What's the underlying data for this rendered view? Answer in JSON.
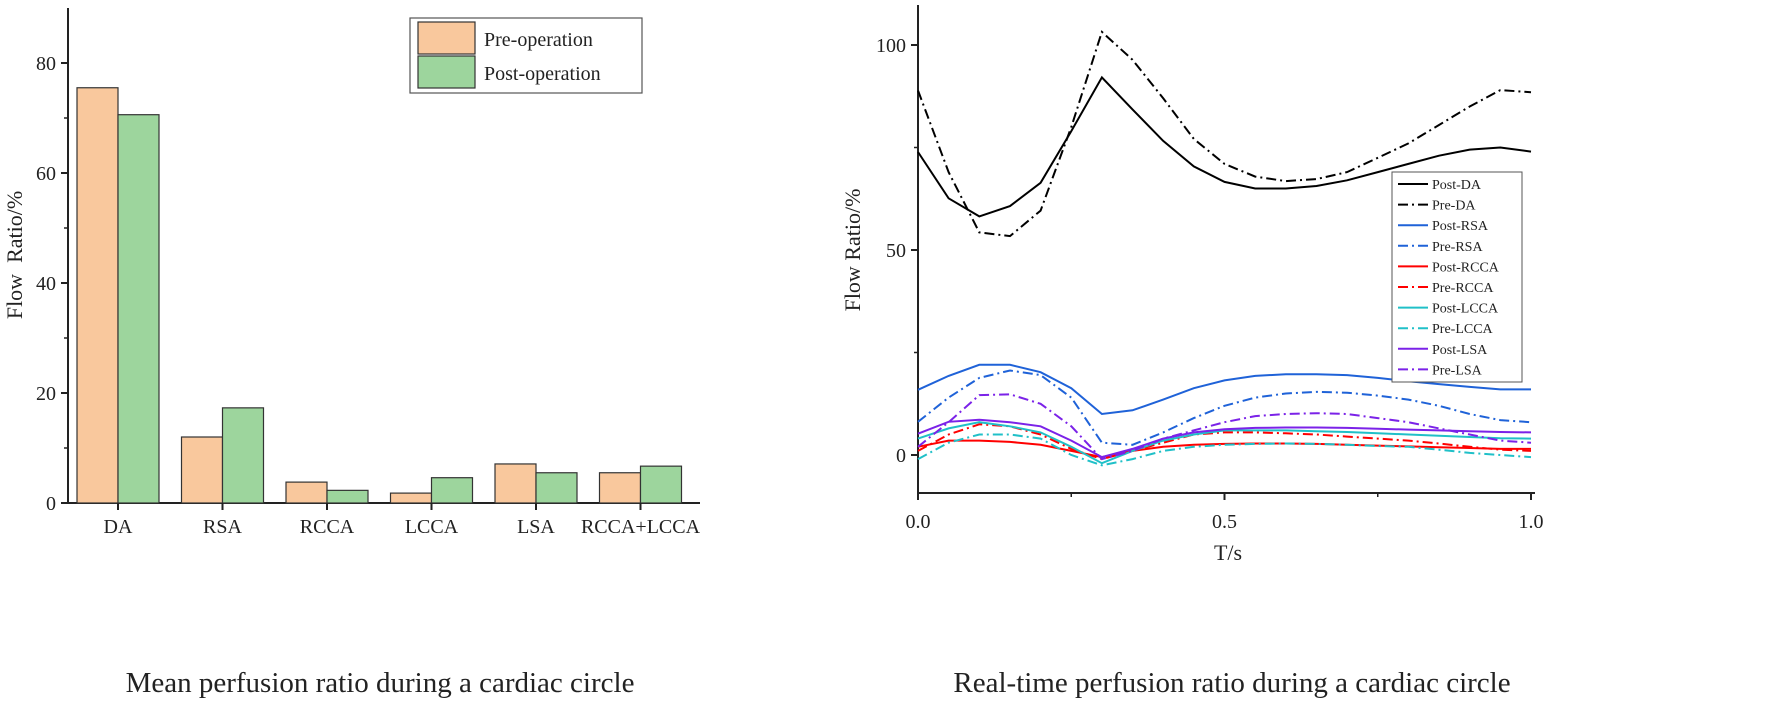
{
  "chart_data": [
    {
      "type": "bar",
      "caption": "Mean perfusion ratio during a cardiac circle",
      "xlabel": "",
      "ylabel": "Flow  Ratio/%",
      "ylim": [
        0,
        88
      ],
      "yticks": [
        0,
        20,
        40,
        60,
        80
      ],
      "categories": [
        "DA",
        "RSA",
        "RCCA",
        "LCCA",
        "LSA",
        "RCCA+LCCA"
      ],
      "series": [
        {
          "name": "Pre-operation",
          "color": "#f9c89d",
          "values": [
            75.5,
            12.0,
            3.8,
            1.8,
            7.1,
            5.5
          ]
        },
        {
          "name": "Post-operation",
          "color": "#9dd59d",
          "values": [
            70.6,
            17.3,
            2.3,
            4.6,
            5.5,
            6.7
          ]
        }
      ],
      "legend": "top-right",
      "grid": false
    },
    {
      "type": "line",
      "caption": "Real-time perfusion ratio during a cardiac circle",
      "xlabel": "T/s",
      "ylabel": "Flow Ratio/%",
      "xlim": [
        0,
        1.0
      ],
      "ylim": [
        -9,
        110
      ],
      "xticks": [
        "0.0",
        "0.5",
        "1.0"
      ],
      "yticks": [
        "0",
        "50",
        "100"
      ],
      "x": [
        0,
        0.05,
        0.1,
        0.15,
        0.2,
        0.25,
        0.3,
        0.35,
        0.4,
        0.45,
        0.5,
        0.55,
        0.6,
        0.65,
        0.7,
        0.75,
        0.8,
        0.85,
        0.9,
        0.95,
        1.0
      ],
      "series": [
        {
          "name": "Post-DA",
          "color": "#000000",
          "dash": "solid",
          "values": [
            73.9,
            62.6,
            58.2,
            60.7,
            66.4,
            79,
            92.1,
            84.3,
            76.6,
            70.4,
            66.6,
            65,
            65,
            65.6,
            67,
            69,
            71,
            73,
            74.5,
            75,
            74
          ]
        },
        {
          "name": "Pre-DA",
          "color": "#000000",
          "dash": "dashdot",
          "values": [
            88.9,
            69,
            54.3,
            53.4,
            59.6,
            80,
            103.2,
            96.4,
            87,
            77.1,
            71,
            67.9,
            66.8,
            67.3,
            69,
            72.5,
            76,
            80.5,
            85,
            89,
            88.5
          ]
        },
        {
          "name": "Post-RSA",
          "color": "#1f62d8",
          "dash": "solid",
          "values": [
            15.9,
            19.3,
            22,
            22,
            20.2,
            16.3,
            10,
            10.9,
            13.5,
            16.3,
            18.2,
            19.3,
            19.7,
            19.7,
            19.5,
            18.8,
            18,
            17.3,
            16.6,
            16,
            16
          ]
        },
        {
          "name": "Pre-RSA",
          "color": "#1f62d8",
          "dash": "dashdot",
          "values": [
            8.1,
            14,
            18.8,
            20.6,
            19.5,
            14,
            3,
            2.5,
            5.5,
            9,
            12,
            14,
            15,
            15.4,
            15.2,
            14.5,
            13.5,
            12,
            10,
            8.5,
            8
          ]
        },
        {
          "name": "Post-RCCA",
          "color": "#ff0000",
          "dash": "solid",
          "values": [
            2,
            3.5,
            3.5,
            3.2,
            2.5,
            1,
            -0.5,
            1,
            2,
            2.5,
            2.7,
            2.8,
            2.8,
            2.7,
            2.5,
            2.3,
            2.1,
            1.9,
            1.7,
            1.5,
            1.5
          ]
        },
        {
          "name": "Pre-RCCA",
          "color": "#ff0000",
          "dash": "dashdot",
          "values": [
            1,
            5,
            7.5,
            7,
            5,
            1.5,
            -1,
            1,
            3,
            5,
            5.5,
            5.5,
            5.3,
            5,
            4.5,
            4,
            3.5,
            2.8,
            2,
            1.3,
            1
          ]
        },
        {
          "name": "Post-LCCA",
          "color": "#20c0c8",
          "dash": "solid",
          "values": [
            4,
            6.5,
            8,
            7,
            5.5,
            2,
            -2,
            1,
            3.5,
            5,
            6,
            6,
            6,
            5.8,
            5.6,
            5.3,
            5,
            4.7,
            4.4,
            4.1,
            4
          ]
        },
        {
          "name": "Pre-LCCA",
          "color": "#20c0c8",
          "dash": "dashdot",
          "values": [
            -1,
            3,
            5,
            5,
            4,
            0,
            -2.5,
            -1,
            1,
            2,
            2.5,
            2.7,
            2.8,
            2.7,
            2.5,
            2.2,
            2,
            1.3,
            0.5,
            0,
            -0.5
          ]
        },
        {
          "name": "Post-LSA",
          "color": "#7b22e8",
          "dash": "solid",
          "values": [
            5.2,
            8.1,
            8.6,
            8,
            7,
            3.5,
            -0.5,
            1.5,
            4,
            5.5,
            6.3,
            6.6,
            6.7,
            6.7,
            6.6,
            6.4,
            6.2,
            6,
            5.8,
            5.6,
            5.5
          ]
        },
        {
          "name": "Pre-LSA",
          "color": "#7b22e8",
          "dash": "dashdot",
          "values": [
            2,
            8,
            14.6,
            14.8,
            12.5,
            7,
            -1,
            1,
            4,
            6,
            8,
            9.5,
            10,
            10.2,
            10,
            9,
            8,
            6.5,
            5,
            3.5,
            3
          ]
        }
      ],
      "legend": "right",
      "grid": false
    }
  ]
}
